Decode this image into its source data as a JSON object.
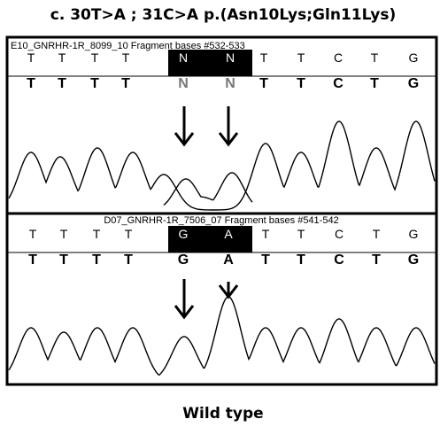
{
  "title": "c. 30T>A ; 31C>A p.(Asn10Lys;Gln11Lys)",
  "panels": [
    {
      "header": "E10_GNRHR-1R_8099_10 Fragment bases #532-533",
      "bases": [
        "T",
        "T",
        "T",
        "T",
        "N",
        "N",
        "T",
        "T",
        "C",
        "T",
        "G"
      ],
      "calls": [
        "T",
        "T",
        "T",
        "T",
        "N",
        "N",
        "T",
        "T",
        "C",
        "T",
        "G"
      ]
    },
    {
      "header": "D07_GNRHR-1R_7506_07 Fragment bases #541-542",
      "bases": [
        "T",
        "T",
        "T",
        "T",
        "G",
        "A",
        "T",
        "T",
        "C",
        "T",
        "G"
      ],
      "calls": [
        "T",
        "T",
        "T",
        "T",
        "G",
        "A",
        "T",
        "T",
        "C",
        "T",
        "G"
      ]
    }
  ],
  "caption": "Wild type"
}
